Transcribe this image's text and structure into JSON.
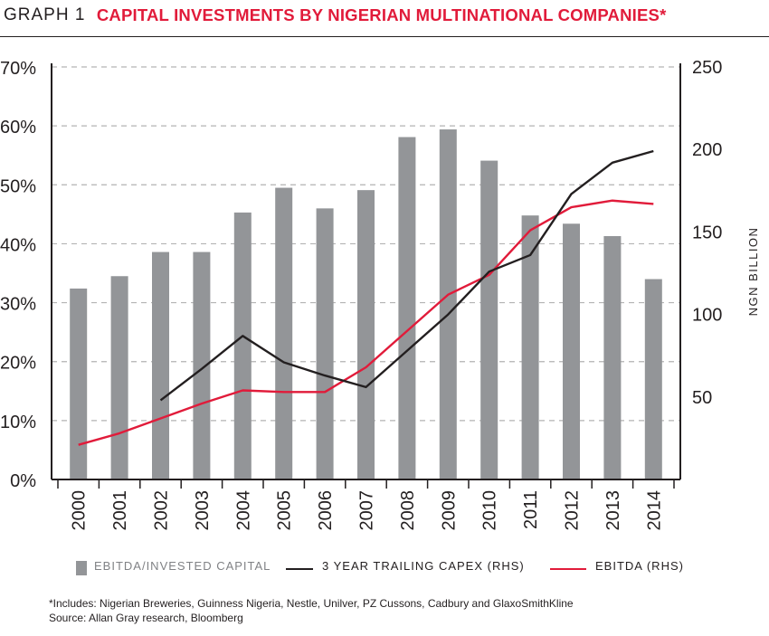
{
  "header": {
    "graph_label": "GRAPH 1",
    "title": "CAPITAL INVESTMENTS BY NIGERIAN MULTINATIONAL COMPANIES*"
  },
  "colors": {
    "bar": "#939598",
    "capex_line": "#231f20",
    "ebitda_line": "#e11b3a",
    "title": "#e11b3a",
    "grid": "#b3b3b3"
  },
  "chart_data": {
    "type": "bar",
    "categories": [
      "2000",
      "2001",
      "2002",
      "2003",
      "2004",
      "2005",
      "2006",
      "2007",
      "2008",
      "2009",
      "2010",
      "2011",
      "2012",
      "2013",
      "2014"
    ],
    "series": [
      {
        "name": "EBITDA/INVESTED CAPITAL",
        "type": "bar",
        "axis": "left",
        "values": [
          32.4,
          34.5,
          38.6,
          38.6,
          45.3,
          49.5,
          46.0,
          49.1,
          58.1,
          59.4,
          54.1,
          44.8,
          43.4,
          41.3,
          34.0
        ]
      },
      {
        "name": "3 YEAR TRAILING CAPEX (RHS)",
        "type": "line",
        "axis": "right",
        "values": [
          null,
          null,
          48,
          67,
          87,
          71,
          63,
          56,
          78,
          100,
          126,
          136,
          173,
          192,
          199
        ]
      },
      {
        "name": "EBITDA (RHS)",
        "type": "line",
        "axis": "right",
        "values": [
          21,
          28,
          37,
          46,
          54,
          53,
          53,
          68,
          90,
          112,
          124,
          151,
          165,
          169,
          167
        ]
      }
    ],
    "y_left": {
      "ticks": [
        "0%",
        "10%",
        "20%",
        "30%",
        "40%",
        "50%",
        "60%",
        "70%"
      ],
      "range": [
        0,
        70
      ]
    },
    "y_right": {
      "label": "NGN BILLION",
      "ticks": [
        "50",
        "100",
        "150",
        "200",
        "250"
      ],
      "range": [
        0,
        250
      ]
    },
    "grid": true,
    "legend_position": "bottom"
  },
  "legend": {
    "bar_label": "EBITDA/INVESTED CAPITAL",
    "capex_label": "3 YEAR TRAILING CAPEX (RHS)",
    "ebitda_label": "EBITDA (RHS)"
  },
  "footnotes": {
    "includes": "*Includes: Nigerian Breweries, Guinness Nigeria, Nestle, Unilver, PZ Cussons, Cadbury and GlaxoSmithKline",
    "source": "Source: Allan Gray research, Bloomberg"
  }
}
